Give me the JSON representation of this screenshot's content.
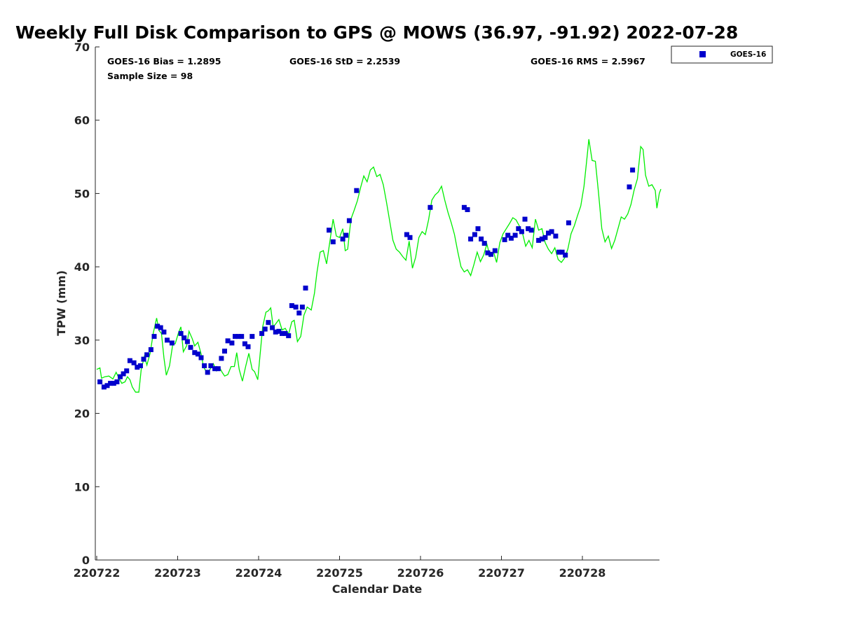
{
  "chart_data": {
    "type": "scatter",
    "title": "Weekly Full Disk Comparison to GPS @ MOWS (36.97, -91.92) 2022-07-28",
    "xlabel": "Calendar Date",
    "ylabel": "TPW (mm)",
    "x_tick_labels": [
      "220722",
      "220723",
      "220724",
      "220725",
      "220726",
      "220727",
      "220728"
    ],
    "xlim": [
      0,
      7
    ],
    "ylim": [
      0,
      70
    ],
    "y_ticks": [
      0,
      10,
      20,
      30,
      40,
      50,
      60,
      70
    ],
    "y_tick_labels": [
      "0",
      "10",
      "20",
      "30",
      "40",
      "50",
      "60",
      "70"
    ],
    "stats": {
      "bias": "GOES-16 Bias = 1.2895",
      "std": "GOES-16 StD = 2.2539",
      "rms": "GOES-16 RMS = 2.5967",
      "sample_size": "Sample Size = 98"
    },
    "legend": {
      "label": "GOES-16",
      "position": "outside-top-right"
    },
    "colors": {
      "goes": "#0000cc",
      "gps": "#00ee00"
    },
    "series": [
      {
        "name": "GOES-16",
        "marker": "square",
        "points": [
          [
            0.04,
            24.3
          ],
          [
            0.09,
            23.6
          ],
          [
            0.13,
            23.8
          ],
          [
            0.17,
            24.1
          ],
          [
            0.21,
            24.1
          ],
          [
            0.25,
            24.3
          ],
          [
            0.29,
            25.0
          ],
          [
            0.33,
            25.4
          ],
          [
            0.37,
            25.8
          ],
          [
            0.41,
            27.2
          ],
          [
            0.46,
            26.9
          ],
          [
            0.5,
            26.3
          ],
          [
            0.54,
            26.5
          ],
          [
            0.58,
            27.4
          ],
          [
            0.62,
            28.0
          ],
          [
            0.67,
            28.7
          ],
          [
            0.71,
            30.5
          ],
          [
            0.75,
            31.9
          ],
          [
            0.79,
            31.7
          ],
          [
            0.83,
            31.1
          ],
          [
            0.87,
            30.0
          ],
          [
            0.93,
            29.6
          ],
          [
            1.04,
            30.9
          ],
          [
            1.08,
            30.3
          ],
          [
            1.12,
            29.8
          ],
          [
            1.16,
            29.0
          ],
          [
            1.21,
            28.3
          ],
          [
            1.25,
            28.1
          ],
          [
            1.29,
            27.6
          ],
          [
            1.33,
            26.5
          ],
          [
            1.37,
            25.6
          ],
          [
            1.41,
            26.5
          ],
          [
            1.46,
            26.1
          ],
          [
            1.5,
            26.1
          ],
          [
            1.54,
            27.5
          ],
          [
            1.58,
            28.5
          ],
          [
            1.62,
            29.9
          ],
          [
            1.67,
            29.6
          ],
          [
            1.71,
            30.5
          ],
          [
            1.75,
            30.5
          ],
          [
            1.79,
            30.5
          ],
          [
            1.83,
            29.5
          ],
          [
            1.87,
            29.1
          ],
          [
            1.92,
            30.5
          ],
          [
            2.04,
            30.9
          ],
          [
            2.08,
            31.5
          ],
          [
            2.12,
            32.4
          ],
          [
            2.17,
            31.7
          ],
          [
            2.21,
            31.1
          ],
          [
            2.25,
            31.2
          ],
          [
            2.29,
            30.9
          ],
          [
            2.33,
            30.9
          ],
          [
            2.37,
            30.6
          ],
          [
            2.41,
            34.7
          ],
          [
            2.46,
            34.5
          ],
          [
            2.5,
            33.7
          ],
          [
            2.54,
            34.5
          ],
          [
            2.58,
            37.1
          ],
          [
            2.87,
            45.0
          ],
          [
            2.92,
            43.4
          ],
          [
            3.04,
            43.8
          ],
          [
            3.08,
            44.3
          ],
          [
            3.12,
            46.3
          ],
          [
            3.21,
            50.4
          ],
          [
            3.83,
            44.4
          ],
          [
            3.87,
            44.0
          ],
          [
            4.12,
            48.1
          ],
          [
            4.54,
            48.1
          ],
          [
            4.58,
            47.8
          ],
          [
            4.62,
            43.8
          ],
          [
            4.67,
            44.4
          ],
          [
            4.71,
            45.2
          ],
          [
            4.75,
            43.8
          ],
          [
            4.79,
            43.2
          ],
          [
            4.83,
            41.9
          ],
          [
            4.87,
            41.7
          ],
          [
            4.92,
            42.2
          ],
          [
            5.04,
            43.7
          ],
          [
            5.08,
            44.3
          ],
          [
            5.12,
            43.9
          ],
          [
            5.17,
            44.3
          ],
          [
            5.21,
            45.2
          ],
          [
            5.25,
            44.8
          ],
          [
            5.29,
            46.5
          ],
          [
            5.33,
            45.2
          ],
          [
            5.37,
            45.0
          ],
          [
            5.46,
            43.6
          ],
          [
            5.5,
            43.8
          ],
          [
            5.54,
            44.0
          ],
          [
            5.58,
            44.6
          ],
          [
            5.62,
            44.8
          ],
          [
            5.67,
            44.2
          ],
          [
            5.71,
            42.0
          ],
          [
            5.75,
            42.0
          ],
          [
            5.79,
            41.6
          ],
          [
            5.83,
            46.0
          ],
          [
            6.58,
            50.9
          ],
          [
            6.62,
            53.2
          ]
        ]
      },
      {
        "name": "GPS",
        "marker": "line",
        "points": [
          [
            0.0,
            26.0
          ],
          [
            0.04,
            26.2
          ],
          [
            0.06,
            24.8
          ],
          [
            0.1,
            25.0
          ],
          [
            0.15,
            25.1
          ],
          [
            0.2,
            24.7
          ],
          [
            0.24,
            25.6
          ],
          [
            0.27,
            24.9
          ],
          [
            0.31,
            24.1
          ],
          [
            0.35,
            24.3
          ],
          [
            0.38,
            25.0
          ],
          [
            0.41,
            24.6
          ],
          [
            0.44,
            23.6
          ],
          [
            0.48,
            22.9
          ],
          [
            0.52,
            22.9
          ],
          [
            0.55,
            26.0
          ],
          [
            0.59,
            27.8
          ],
          [
            0.62,
            26.6
          ],
          [
            0.66,
            28.2
          ],
          [
            0.7,
            31.0
          ],
          [
            0.74,
            33.0
          ],
          [
            0.77,
            31.3
          ],
          [
            0.8,
            30.9
          ],
          [
            0.83,
            27.6
          ],
          [
            0.86,
            25.2
          ],
          [
            0.9,
            26.5
          ],
          [
            0.94,
            29.5
          ],
          [
            0.97,
            29.5
          ],
          [
            1.01,
            31.0
          ],
          [
            1.04,
            31.8
          ],
          [
            1.07,
            28.4
          ],
          [
            1.11,
            29.2
          ],
          [
            1.14,
            31.2
          ],
          [
            1.18,
            30.2
          ],
          [
            1.21,
            29.2
          ],
          [
            1.25,
            29.7
          ],
          [
            1.29,
            28.1
          ],
          [
            1.32,
            26.3
          ],
          [
            1.36,
            25.6
          ],
          [
            1.4,
            26.0
          ],
          [
            1.44,
            26.8
          ],
          [
            1.48,
            25.8
          ],
          [
            1.52,
            26.2
          ],
          [
            1.55,
            25.6
          ],
          [
            1.58,
            25.1
          ],
          [
            1.62,
            25.3
          ],
          [
            1.66,
            26.4
          ],
          [
            1.7,
            26.4
          ],
          [
            1.73,
            28.3
          ],
          [
            1.76,
            26.0
          ],
          [
            1.8,
            24.4
          ],
          [
            1.84,
            26.4
          ],
          [
            1.88,
            28.2
          ],
          [
            1.92,
            26.0
          ],
          [
            1.95,
            25.7
          ],
          [
            1.99,
            24.6
          ],
          [
            2.02,
            28.2
          ],
          [
            2.05,
            31.8
          ],
          [
            2.09,
            33.8
          ],
          [
            2.12,
            34.0
          ],
          [
            2.15,
            34.4
          ],
          [
            2.18,
            31.8
          ],
          [
            2.21,
            32.2
          ],
          [
            2.25,
            32.8
          ],
          [
            2.29,
            31.4
          ],
          [
            2.33,
            31.6
          ],
          [
            2.37,
            30.8
          ],
          [
            2.41,
            32.5
          ],
          [
            2.44,
            32.7
          ],
          [
            2.48,
            29.8
          ],
          [
            2.52,
            30.5
          ],
          [
            2.56,
            33.4
          ],
          [
            2.6,
            34.5
          ],
          [
            2.65,
            34.1
          ],
          [
            2.69,
            36.4
          ],
          [
            2.72,
            39.2
          ],
          [
            2.76,
            42.0
          ],
          [
            2.8,
            42.2
          ],
          [
            2.84,
            40.4
          ],
          [
            2.88,
            43.4
          ],
          [
            2.92,
            46.5
          ],
          [
            2.96,
            44.2
          ],
          [
            3.0,
            44.0
          ],
          [
            3.04,
            45.2
          ],
          [
            3.07,
            42.2
          ],
          [
            3.1,
            42.4
          ],
          [
            3.14,
            46.5
          ],
          [
            3.18,
            47.7
          ],
          [
            3.22,
            49.0
          ],
          [
            3.26,
            50.8
          ],
          [
            3.3,
            52.4
          ],
          [
            3.34,
            51.6
          ],
          [
            3.38,
            53.2
          ],
          [
            3.42,
            53.6
          ],
          [
            3.46,
            52.3
          ],
          [
            3.5,
            52.6
          ],
          [
            3.54,
            51.2
          ],
          [
            3.58,
            48.8
          ],
          [
            3.62,
            46.2
          ],
          [
            3.66,
            43.6
          ],
          [
            3.7,
            42.4
          ],
          [
            3.74,
            42.0
          ],
          [
            3.78,
            41.4
          ],
          [
            3.82,
            40.9
          ],
          [
            3.86,
            43.5
          ],
          [
            3.9,
            39.8
          ],
          [
            3.94,
            41.3
          ],
          [
            3.98,
            44.0
          ],
          [
            4.02,
            44.8
          ],
          [
            4.06,
            44.4
          ],
          [
            4.1,
            46.4
          ],
          [
            4.14,
            49.1
          ],
          [
            4.18,
            49.8
          ],
          [
            4.22,
            50.2
          ],
          [
            4.26,
            51.0
          ],
          [
            4.3,
            49.1
          ],
          [
            4.34,
            47.4
          ],
          [
            4.38,
            46.0
          ],
          [
            4.42,
            44.4
          ],
          [
            4.46,
            42.1
          ],
          [
            4.5,
            40.0
          ],
          [
            4.54,
            39.3
          ],
          [
            4.58,
            39.6
          ],
          [
            4.62,
            38.8
          ],
          [
            4.66,
            40.3
          ],
          [
            4.7,
            42.0
          ],
          [
            4.74,
            40.7
          ],
          [
            4.78,
            41.6
          ],
          [
            4.82,
            43.1
          ],
          [
            4.86,
            41.4
          ],
          [
            4.9,
            42.1
          ],
          [
            4.94,
            40.6
          ],
          [
            4.98,
            43.3
          ],
          [
            5.02,
            44.5
          ],
          [
            5.06,
            45.2
          ],
          [
            5.1,
            45.9
          ],
          [
            5.14,
            46.7
          ],
          [
            5.18,
            46.4
          ],
          [
            5.22,
            45.6
          ],
          [
            5.26,
            44.6
          ],
          [
            5.3,
            42.8
          ],
          [
            5.34,
            43.6
          ],
          [
            5.38,
            42.6
          ],
          [
            5.42,
            46.5
          ],
          [
            5.46,
            45.0
          ],
          [
            5.5,
            45.2
          ],
          [
            5.54,
            43.3
          ],
          [
            5.58,
            42.4
          ],
          [
            5.62,
            41.8
          ],
          [
            5.66,
            42.6
          ],
          [
            5.7,
            41.0
          ],
          [
            5.74,
            40.6
          ],
          [
            5.78,
            41.2
          ],
          [
            5.82,
            42.4
          ],
          [
            5.86,
            44.5
          ],
          [
            5.9,
            45.6
          ],
          [
            5.94,
            47.0
          ],
          [
            5.98,
            48.3
          ],
          [
            6.02,
            51.0
          ],
          [
            6.06,
            55.2
          ],
          [
            6.08,
            57.4
          ],
          [
            6.12,
            54.5
          ],
          [
            6.16,
            54.4
          ],
          [
            6.2,
            50.0
          ],
          [
            6.24,
            45.2
          ],
          [
            6.28,
            43.4
          ],
          [
            6.32,
            44.2
          ],
          [
            6.36,
            42.5
          ],
          [
            6.4,
            43.6
          ],
          [
            6.44,
            45.2
          ],
          [
            6.48,
            46.8
          ],
          [
            6.52,
            46.5
          ],
          [
            6.56,
            47.2
          ],
          [
            6.6,
            48.5
          ],
          [
            6.64,
            50.5
          ],
          [
            6.68,
            52.0
          ],
          [
            6.72,
            56.4
          ],
          [
            6.75,
            56.0
          ],
          [
            6.78,
            52.5
          ],
          [
            6.82,
            51.0
          ],
          [
            6.86,
            51.2
          ],
          [
            6.9,
            50.4
          ],
          [
            6.92,
            48.0
          ],
          [
            6.95,
            50.0
          ],
          [
            6.97,
            50.6
          ]
        ]
      }
    ]
  }
}
